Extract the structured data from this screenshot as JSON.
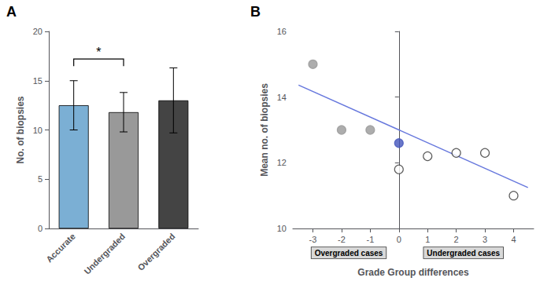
{
  "chart_data": [
    {
      "type": "bar",
      "label": "A",
      "categories": [
        "Accurate",
        "Undergraded",
        "Overgraded"
      ],
      "values": [
        12.5,
        11.8,
        13.0
      ],
      "errors": [
        2.5,
        2.0,
        3.3
      ],
      "colors": [
        "#7BAFD4",
        "#999999",
        "#444444"
      ],
      "ylabel": "No. of biopsies",
      "ylim": [
        0,
        20
      ],
      "yticks": [
        0,
        5,
        10,
        15,
        20
      ],
      "grid": false,
      "annotations": [
        {
          "text": "*",
          "between": [
            "Accurate",
            "Undergraded"
          ],
          "y": 17.2
        }
      ]
    },
    {
      "type": "scatter",
      "label": "B",
      "xlabel": "Grade Group differences",
      "ylabel": "Mean no. of biopsies",
      "xlim": [
        -3.7,
        4.7
      ],
      "xticks": [
        -3,
        -2,
        -1,
        0,
        1,
        2,
        3,
        4
      ],
      "ylim": [
        10,
        16
      ],
      "yticks": [
        10,
        12,
        14,
        16
      ],
      "grid": false,
      "series": [
        {
          "type": "scatter",
          "marker": "filled",
          "x": [
            -3,
            -2,
            -1,
            0
          ],
          "values": [
            15.0,
            13.0,
            13.0,
            12.6
          ],
          "colors": [
            "#999999",
            "#999999",
            "#999999",
            "#4455bb"
          ]
        },
        {
          "type": "scatter",
          "marker": "open",
          "x": [
            0,
            1,
            2,
            3,
            4
          ],
          "values": [
            11.8,
            12.2,
            12.3,
            12.3,
            11.0
          ],
          "color": "#333333"
        },
        {
          "type": "line",
          "x": [
            -3.5,
            4.5
          ],
          "values": [
            14.365,
            11.245
          ],
          "color": "#6677dd"
        }
      ],
      "annotations": [
        {
          "text": "Overgraded cases",
          "x": -1.75
        },
        {
          "text": "Undergraded cases",
          "x": 2.25
        }
      ]
    }
  ]
}
